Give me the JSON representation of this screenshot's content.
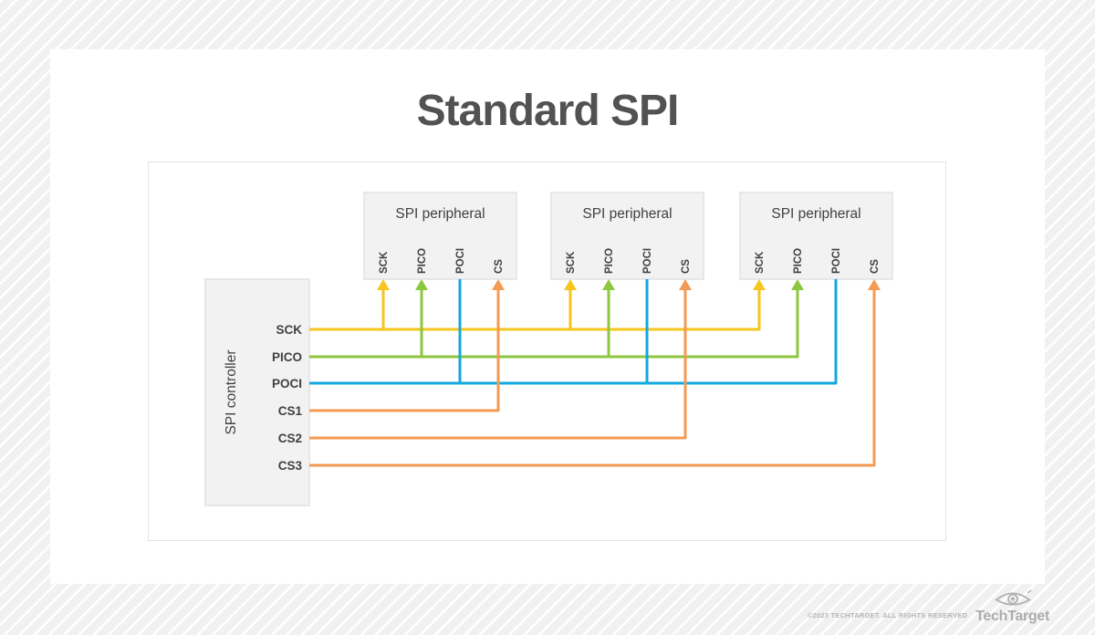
{
  "title": "Standard SPI",
  "diagram": {
    "controller": {
      "label": "SPI controller",
      "pins": [
        "SCK",
        "PICO",
        "POCI",
        "CS1",
        "CS2",
        "CS3"
      ]
    },
    "peripherals": [
      {
        "label": "SPI peripheral",
        "pins": [
          "SCK",
          "PICO",
          "POCI",
          "CS"
        ]
      },
      {
        "label": "SPI peripheral",
        "pins": [
          "SCK",
          "PICO",
          "POCI",
          "CS"
        ]
      },
      {
        "label": "SPI peripheral",
        "pins": [
          "SCK",
          "PICO",
          "POCI",
          "CS"
        ]
      }
    ],
    "signals": [
      {
        "name": "SCK",
        "color": "#F6C51E",
        "type": "shared",
        "pin_index": 0,
        "arrow": "to_peripheral"
      },
      {
        "name": "PICO",
        "color": "#8DC63F",
        "type": "shared",
        "pin_index": 1,
        "arrow": "to_peripheral"
      },
      {
        "name": "POCI",
        "color": "#12A8E0",
        "type": "shared",
        "pin_index": 2,
        "arrow": "to_controller"
      },
      {
        "name": "CS1",
        "color": "#F49A52",
        "type": "select",
        "peripheral_index": 0,
        "pin_index": 3,
        "arrow": "to_peripheral"
      },
      {
        "name": "CS2",
        "color": "#F49A52",
        "type": "select",
        "peripheral_index": 1,
        "pin_index": 3,
        "arrow": "to_peripheral"
      },
      {
        "name": "CS3",
        "color": "#F49A52",
        "type": "select",
        "peripheral_index": 2,
        "pin_index": 3,
        "arrow": "to_peripheral"
      }
    ],
    "box_fill": "#f2f2f3",
    "box_border": "#e2e2e2",
    "text_color": "#414042"
  },
  "footer": {
    "copyright": "©2023 TECHTARGET. ALL RIGHTS RESERVED",
    "brand": "TechTarget"
  }
}
